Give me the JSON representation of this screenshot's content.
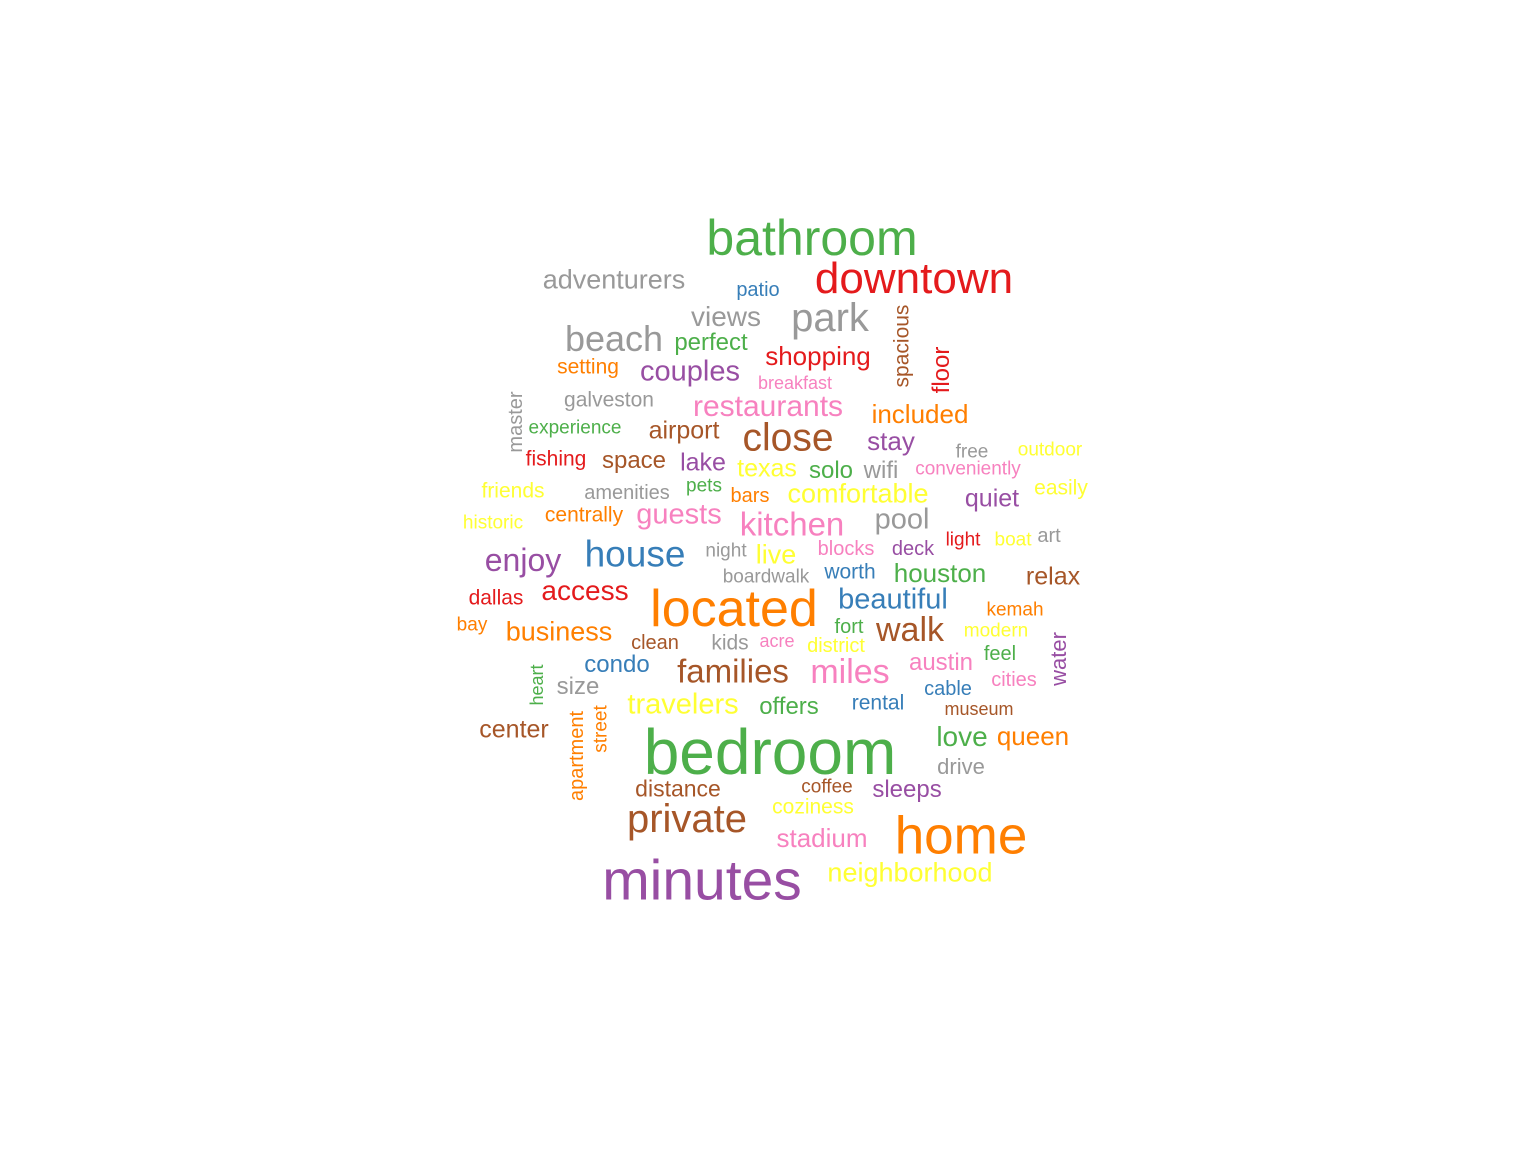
{
  "palette": {
    "green": "#4daf4a",
    "red": "#e41a1c",
    "grey": "#999999",
    "blue": "#377eb8",
    "purple": "#984ea3",
    "orange": "#ff7f00",
    "yellow": "#ffff33",
    "brown": "#a65628",
    "pink": "#f781bf"
  },
  "words": [
    {
      "text": "bathroom",
      "color": "green"
    },
    {
      "text": "downtown",
      "color": "red"
    },
    {
      "text": "adventurers",
      "color": "grey"
    },
    {
      "text": "patio",
      "color": "blue"
    },
    {
      "text": "views",
      "color": "grey"
    },
    {
      "text": "park",
      "color": "grey"
    },
    {
      "text": "spacious",
      "color": "brown"
    },
    {
      "text": "beach",
      "color": "grey"
    },
    {
      "text": "perfect",
      "color": "green"
    },
    {
      "text": "shopping",
      "color": "red"
    },
    {
      "text": "floor",
      "color": "red"
    },
    {
      "text": "setting",
      "color": "orange"
    },
    {
      "text": "couples",
      "color": "purple"
    },
    {
      "text": "breakfast",
      "color": "pink"
    },
    {
      "text": "galveston",
      "color": "grey"
    },
    {
      "text": "restaurants",
      "color": "pink"
    },
    {
      "text": "included",
      "color": "orange"
    },
    {
      "text": "master",
      "color": "grey"
    },
    {
      "text": "experience",
      "color": "green"
    },
    {
      "text": "airport",
      "color": "brown"
    },
    {
      "text": "close",
      "color": "brown"
    },
    {
      "text": "stay",
      "color": "purple"
    },
    {
      "text": "free",
      "color": "grey"
    },
    {
      "text": "outdoor",
      "color": "yellow"
    },
    {
      "text": "fishing",
      "color": "red"
    },
    {
      "text": "space",
      "color": "brown"
    },
    {
      "text": "lake",
      "color": "purple"
    },
    {
      "text": "texas",
      "color": "yellow"
    },
    {
      "text": "solo",
      "color": "green"
    },
    {
      "text": "wifi",
      "color": "grey"
    },
    {
      "text": "conveniently",
      "color": "pink"
    },
    {
      "text": "friends",
      "color": "yellow"
    },
    {
      "text": "amenities",
      "color": "grey"
    },
    {
      "text": "pets",
      "color": "green"
    },
    {
      "text": "bars",
      "color": "orange"
    },
    {
      "text": "comfortable",
      "color": "yellow"
    },
    {
      "text": "quiet",
      "color": "purple"
    },
    {
      "text": "easily",
      "color": "yellow"
    },
    {
      "text": "historic",
      "color": "yellow"
    },
    {
      "text": "centrally",
      "color": "orange"
    },
    {
      "text": "guests",
      "color": "pink"
    },
    {
      "text": "kitchen",
      "color": "pink"
    },
    {
      "text": "pool",
      "color": "grey"
    },
    {
      "text": "enjoy",
      "color": "purple"
    },
    {
      "text": "house",
      "color": "blue"
    },
    {
      "text": "night",
      "color": "grey"
    },
    {
      "text": "live",
      "color": "yellow"
    },
    {
      "text": "blocks",
      "color": "pink"
    },
    {
      "text": "deck",
      "color": "purple"
    },
    {
      "text": "light",
      "color": "red"
    },
    {
      "text": "boat",
      "color": "yellow"
    },
    {
      "text": "art",
      "color": "grey"
    },
    {
      "text": "boardwalk",
      "color": "grey"
    },
    {
      "text": "worth",
      "color": "blue"
    },
    {
      "text": "houston",
      "color": "green"
    },
    {
      "text": "relax",
      "color": "brown"
    },
    {
      "text": "dallas",
      "color": "red"
    },
    {
      "text": "access",
      "color": "red"
    },
    {
      "text": "located",
      "color": "orange"
    },
    {
      "text": "beautiful",
      "color": "blue"
    },
    {
      "text": "kemah",
      "color": "orange"
    },
    {
      "text": "bay",
      "color": "orange"
    },
    {
      "text": "business",
      "color": "orange"
    },
    {
      "text": "clean",
      "color": "brown"
    },
    {
      "text": "kids",
      "color": "grey"
    },
    {
      "text": "acre",
      "color": "pink"
    },
    {
      "text": "fort",
      "color": "green"
    },
    {
      "text": "walk",
      "color": "brown"
    },
    {
      "text": "modern",
      "color": "yellow"
    },
    {
      "text": "district",
      "color": "yellow"
    },
    {
      "text": "water",
      "color": "purple"
    },
    {
      "text": "condo",
      "color": "blue"
    },
    {
      "text": "families",
      "color": "brown"
    },
    {
      "text": "miles",
      "color": "pink"
    },
    {
      "text": "austin",
      "color": "pink"
    },
    {
      "text": "feel",
      "color": "green"
    },
    {
      "text": "heart",
      "color": "green"
    },
    {
      "text": "size",
      "color": "grey"
    },
    {
      "text": "cities",
      "color": "pink"
    },
    {
      "text": "cable",
      "color": "blue"
    },
    {
      "text": "street",
      "color": "orange"
    },
    {
      "text": "travelers",
      "color": "yellow"
    },
    {
      "text": "offers",
      "color": "green"
    },
    {
      "text": "rental",
      "color": "blue"
    },
    {
      "text": "museum",
      "color": "brown"
    },
    {
      "text": "center",
      "color": "brown"
    },
    {
      "text": "apartment",
      "color": "orange"
    },
    {
      "text": "bedroom",
      "color": "green"
    },
    {
      "text": "love",
      "color": "green"
    },
    {
      "text": "queen",
      "color": "orange"
    },
    {
      "text": "drive",
      "color": "grey"
    },
    {
      "text": "distance",
      "color": "brown"
    },
    {
      "text": "coffee",
      "color": "brown"
    },
    {
      "text": "sleeps",
      "color": "purple"
    },
    {
      "text": "coziness",
      "color": "yellow"
    },
    {
      "text": "private",
      "color": "brown"
    },
    {
      "text": "stadium",
      "color": "pink"
    },
    {
      "text": "home",
      "color": "orange"
    },
    {
      "text": "minutes",
      "color": "purple"
    },
    {
      "text": "neighborhood",
      "color": "yellow"
    }
  ]
}
